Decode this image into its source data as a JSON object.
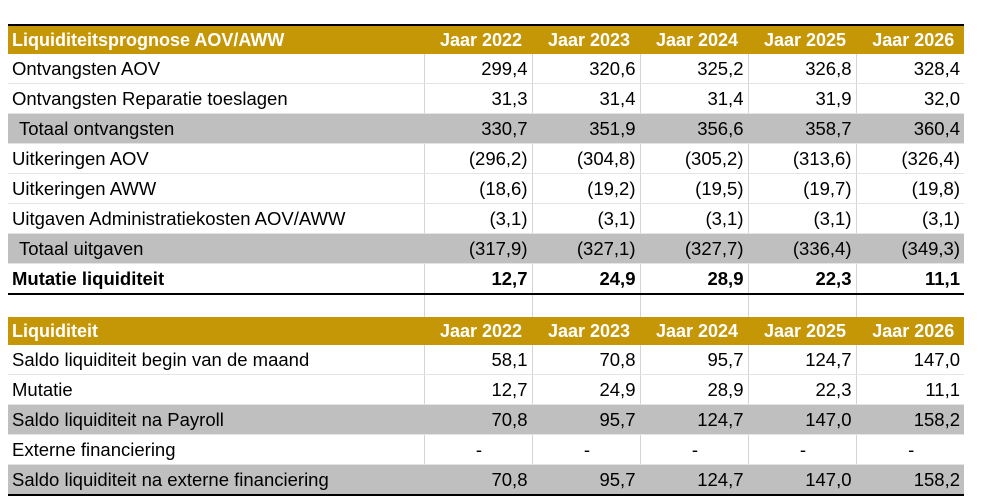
{
  "table1": {
    "header": {
      "label": "Liquiditeitsprognose AOV/AWW",
      "years": [
        "Jaar 2022",
        "Jaar 2023",
        "Jaar 2024",
        "Jaar 2025",
        "Jaar 2026"
      ]
    },
    "rows": [
      {
        "label": "Ontvangsten AOV",
        "values": [
          "299,4",
          "320,6",
          "325,2",
          "326,8",
          "328,4"
        ],
        "style": "normal"
      },
      {
        "label": "Ontvangsten Reparatie toeslagen",
        "values": [
          "31,3",
          "31,4",
          "31,4",
          "31,9",
          "32,0"
        ],
        "style": "normal"
      },
      {
        "label": "Totaal ontvangsten",
        "values": [
          "330,7",
          "351,9",
          "356,6",
          "358,7",
          "360,4"
        ],
        "style": "gray-indent"
      },
      {
        "label": "Uitkeringen AOV",
        "values": [
          "(296,2)",
          "(304,8)",
          "(305,2)",
          "(313,6)",
          "(326,4)"
        ],
        "style": "normal"
      },
      {
        "label": "Uitkeringen AWW",
        "values": [
          "(18,6)",
          "(19,2)",
          "(19,5)",
          "(19,7)",
          "(19,8)"
        ],
        "style": "normal"
      },
      {
        "label": "Uitgaven Administratiekosten AOV/AWW",
        "values": [
          "(3,1)",
          "(3,1)",
          "(3,1)",
          "(3,1)",
          "(3,1)"
        ],
        "style": "normal"
      },
      {
        "label": "Totaal uitgaven",
        "values": [
          "(317,9)",
          "(327,1)",
          "(327,7)",
          "(336,4)",
          "(349,3)"
        ],
        "style": "gray-indent"
      },
      {
        "label": "Mutatie liquiditeit",
        "values": [
          "12,7",
          "24,9",
          "28,9",
          "22,3",
          "11,1"
        ],
        "style": "bold"
      }
    ]
  },
  "table2": {
    "header": {
      "label": "Liquiditeit",
      "years": [
        "Jaar 2022",
        "Jaar 2023",
        "Jaar 2024",
        "Jaar 2025",
        "Jaar 2026"
      ]
    },
    "rows": [
      {
        "label": "Saldo liquiditeit begin van de maand",
        "values": [
          "58,1",
          "70,8",
          "95,7",
          "124,7",
          "147,0"
        ],
        "style": "normal"
      },
      {
        "label": "Mutatie",
        "values": [
          "12,7",
          "24,9",
          "28,9",
          "22,3",
          "11,1"
        ],
        "style": "normal"
      },
      {
        "label": "Saldo liquiditeit na Payroll",
        "values": [
          "70,8",
          "95,7",
          "124,7",
          "147,0",
          "158,2"
        ],
        "style": "gray"
      },
      {
        "label": "Externe financiering",
        "values": [
          "-",
          "-",
          "-",
          "-",
          "-"
        ],
        "style": "dash"
      },
      {
        "label": "Saldo liquiditeit na externe financiering",
        "values": [
          "70,8",
          "95,7",
          "124,7",
          "147,0",
          "158,2"
        ],
        "style": "gray-last"
      }
    ]
  },
  "colors": {
    "header_bg": "#c59606",
    "header_text": "#ffffff",
    "subtotal_bg": "#bfbfbf"
  }
}
